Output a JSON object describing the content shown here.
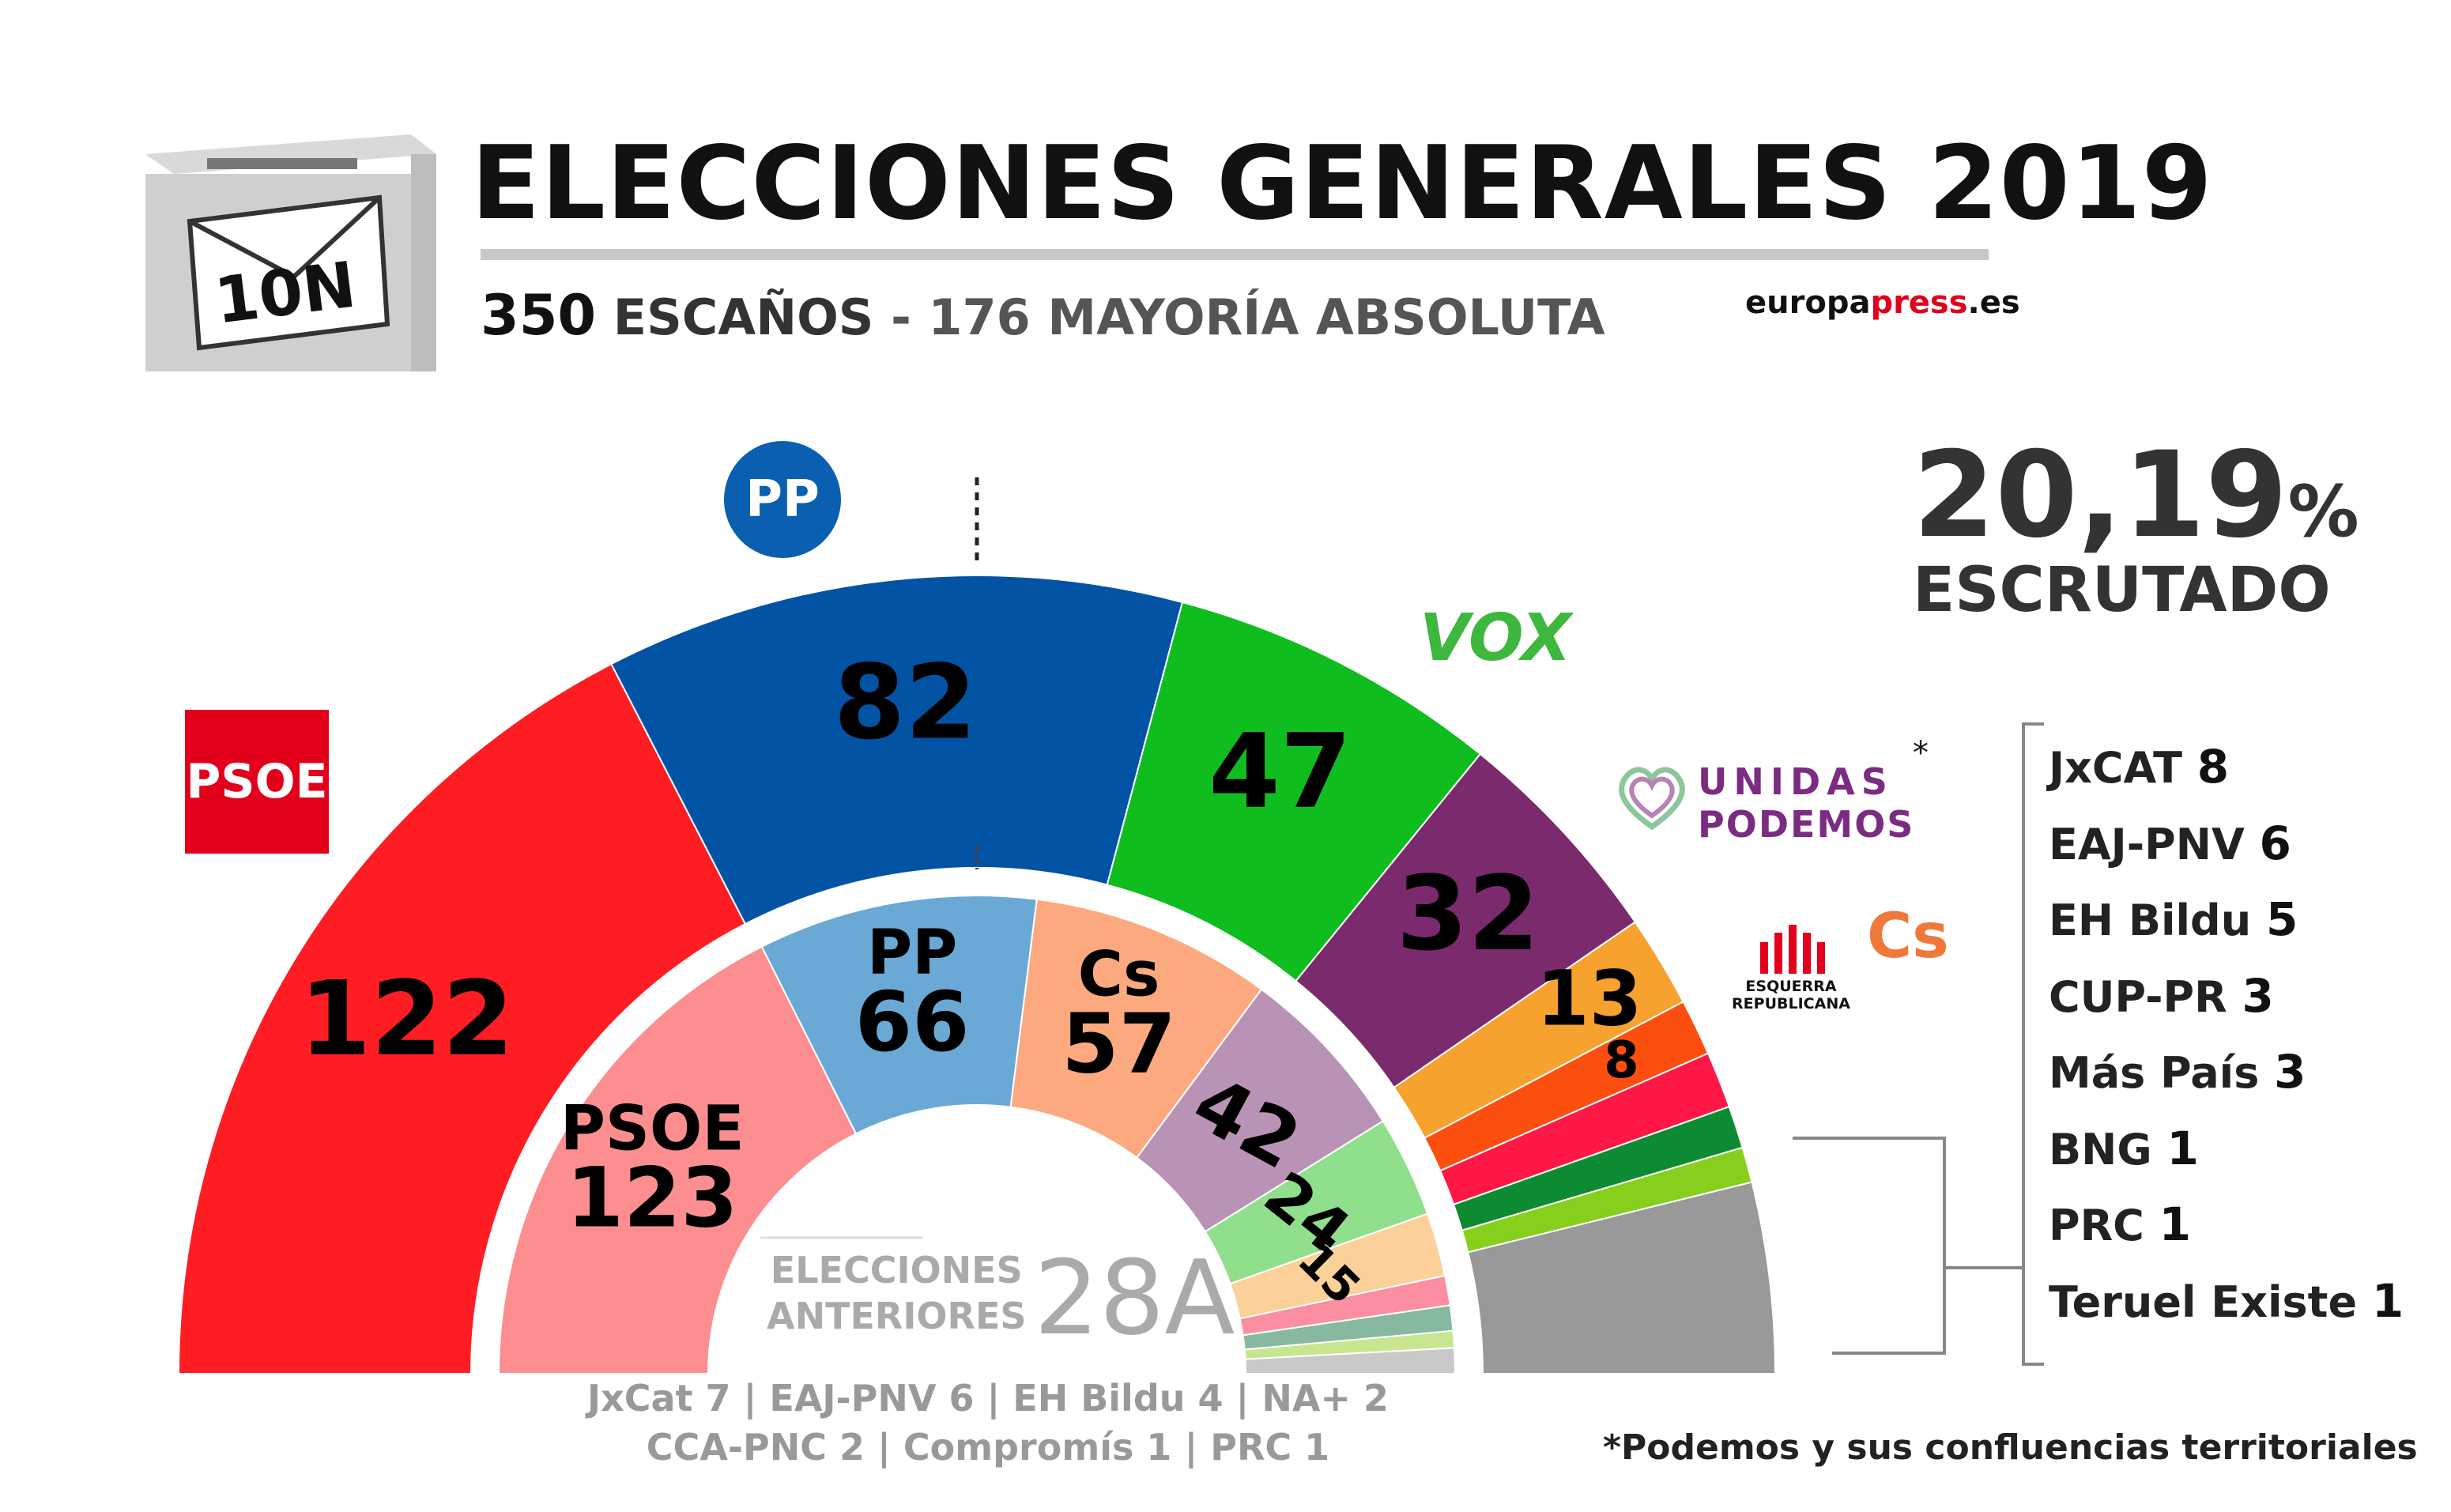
{
  "header": {
    "ballot_box_label": "10N",
    "title": "ELECCIONES GENERALES 2019",
    "seats_total": "350",
    "seats_word": "ESCAÑOS",
    "separator": "-",
    "majority_number": "176",
    "majority_word": "MAYORÍA ABSOLUTA",
    "credit_a": "europa",
    "credit_b": "press",
    "credit_c": ".es"
  },
  "scrutiny": {
    "percent": "20,19",
    "percent_sign": "%",
    "label": "ESCRUTADO"
  },
  "logos": {
    "psoe": "PSOE",
    "pp": "PP",
    "vox": "VOX",
    "up_line1": "UNIDAS",
    "up_line2": "PODEMOS",
    "up_asterisk": "*",
    "erc_line1": "ESQUERRA",
    "erc_line2": "REPUBLICANA",
    "cs": "Cs"
  },
  "chart_data": {
    "type": "pie",
    "title": "ELECCIONES GENERALES 2019",
    "subtitle": "350 ESCAÑOS - 176 MAYORÍA ABSOLUTA",
    "scrutinized": "20,19% ESCRUTADO",
    "current": {
      "series_name": "10N",
      "parties": [
        {
          "party": "PSOE",
          "seats": 122,
          "color": "#fd1d23",
          "label": "122"
        },
        {
          "party": "PP",
          "seats": 82,
          "color": "#0353a4",
          "label": "82"
        },
        {
          "party": "VOX",
          "seats": 47,
          "color": "#0fbd1f",
          "label": "47"
        },
        {
          "party": "UNIDAS PODEMOS",
          "seats": 32,
          "color": "#7b2b6d",
          "label": "32"
        },
        {
          "party": "ERC",
          "seats": 13,
          "color": "#f7a12e",
          "label": "13"
        },
        {
          "party": "Cs",
          "seats": 8,
          "color": "#fc4f0f",
          "label": "8"
        },
        {
          "party": "JxCAT",
          "seats": 8,
          "color": "#ff1745",
          "label": ""
        },
        {
          "party": "EAJ-PNV",
          "seats": 6,
          "color": "#0c8b32",
          "label": ""
        },
        {
          "party": "EH Bildu",
          "seats": 5,
          "color": "#86cf1c",
          "label": ""
        },
        {
          "party": "Others",
          "seats": 27,
          "color": "#999999",
          "label": ""
        }
      ]
    },
    "previous": {
      "series_name": "28A",
      "label_line1": "ELECCIONES",
      "label_line2": "ANTERIORES",
      "tag": "28A",
      "parties": [
        {
          "party": "PSOE",
          "seats": 123,
          "color": "#fc8e90",
          "label": "PSOE 123"
        },
        {
          "party": "PP",
          "seats": 66,
          "color": "#6aa9d6",
          "label": "PP 66"
        },
        {
          "party": "Cs",
          "seats": 57,
          "color": "#fca97f",
          "label": "Cs 57"
        },
        {
          "party": "UNIDAS PODEMOS",
          "seats": 42,
          "color": "#b993b6",
          "label": "42"
        },
        {
          "party": "VOX",
          "seats": 24,
          "color": "#90df8d",
          "label": "24"
        },
        {
          "party": "ERC",
          "seats": 15,
          "color": "#fbd199",
          "label": "15"
        },
        {
          "party": "Others-a",
          "seats": 7,
          "color": "#fb8ea0",
          "label": ""
        },
        {
          "party": "Others-b",
          "seats": 6,
          "color": "#86b9a0",
          "label": ""
        },
        {
          "party": "Others-c",
          "seats": 4,
          "color": "#c8e590",
          "label": ""
        },
        {
          "party": "Others-d",
          "seats": 6,
          "color": "#c9c9c9",
          "label": ""
        }
      ]
    },
    "others_current": [
      {
        "party": "JxCAT",
        "seats": "8"
      },
      {
        "party": "EAJ-PNV",
        "seats": "6"
      },
      {
        "party": "EH Bildu",
        "seats": "5"
      },
      {
        "party": "CUP-PR",
        "seats": "3"
      },
      {
        "party": "Más País",
        "seats": "3"
      },
      {
        "party": "BNG",
        "seats": "1"
      },
      {
        "party": "PRC",
        "seats": "1"
      },
      {
        "party": "Teruel Existe",
        "seats": "1"
      }
    ],
    "others_previous_line1": "JxCat 7 | EAJ-PNV 6 | EH Bildu 4 | NA+ 2",
    "others_previous_line2": "CCA-PNC 2 |  Compromís 1 | PRC 1",
    "footnote": "*Podemos y sus confluencias territoriales"
  }
}
